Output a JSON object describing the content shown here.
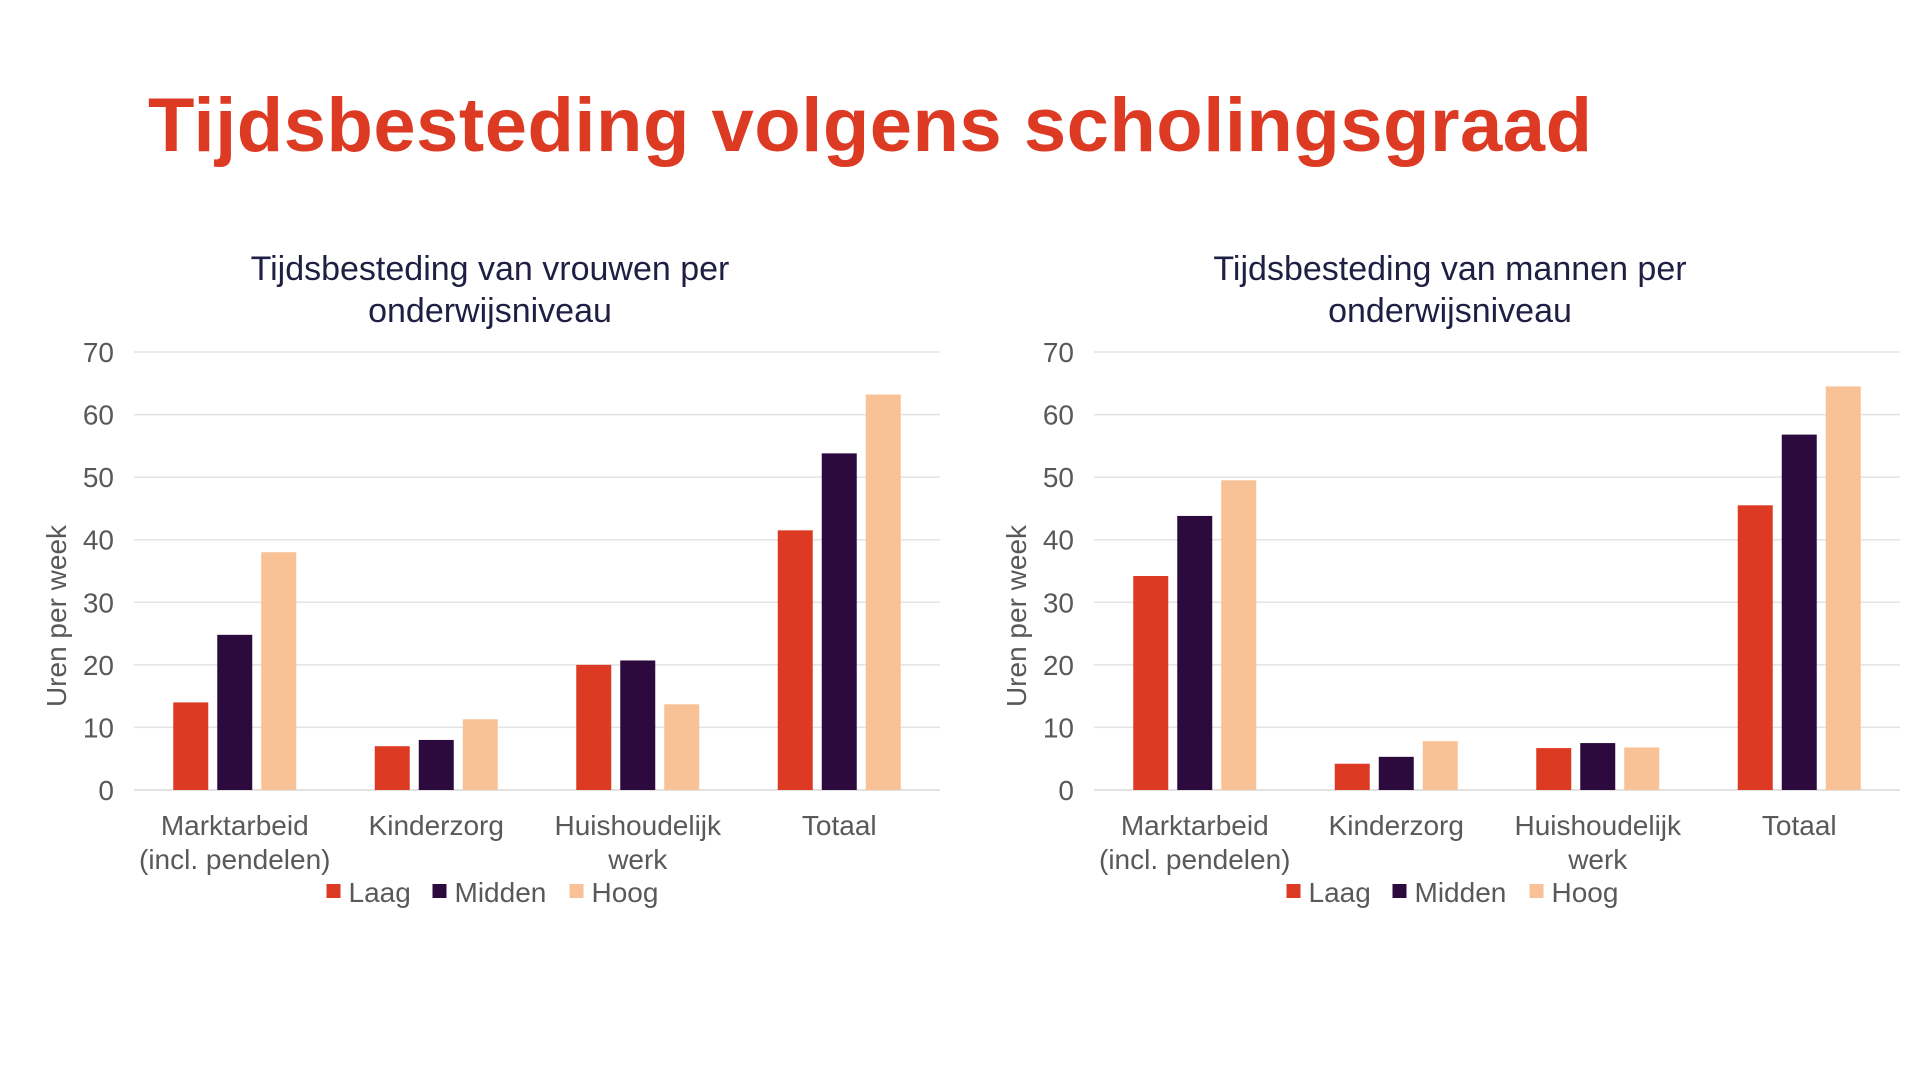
{
  "page": {
    "title": "Tijdsbesteding volgens scholingsgraad"
  },
  "chart_data": [
    {
      "type": "bar",
      "title": [
        "Tijdsbesteding van vrouwen per",
        "onderwijsniveau"
      ],
      "ylabel": "Uren per week",
      "ylim": [
        0,
        70
      ],
      "yticks": [
        "0",
        "10",
        "20",
        "30",
        "40",
        "50",
        "60",
        "70"
      ],
      "categories": [
        [
          "Marktarbeid",
          "(incl. pendelen)"
        ],
        [
          "Kinderzorg"
        ],
        [
          "Huishoudelijk",
          "werk"
        ],
        [
          "Totaal"
        ]
      ],
      "series": [
        {
          "name": "Laag",
          "color": "#dd3a23",
          "values": [
            14,
            7,
            20,
            41.5
          ]
        },
        {
          "name": "Midden",
          "color": "#2d0a3e",
          "values": [
            24.8,
            8,
            20.7,
            53.8
          ]
        },
        {
          "name": "Hoog",
          "color": "#f8c196",
          "values": [
            38,
            11.3,
            13.7,
            63.2
          ]
        }
      ],
      "grid": true,
      "legend": "bottom"
    },
    {
      "type": "bar",
      "title": [
        "Tijdsbesteding van mannen per",
        "onderwijsniveau"
      ],
      "ylabel": "Uren per week",
      "ylim": [
        0,
        70
      ],
      "yticks": [
        "0",
        "10",
        "20",
        "30",
        "40",
        "50",
        "60",
        "70"
      ],
      "categories": [
        [
          "Marktarbeid",
          "(incl. pendelen)"
        ],
        [
          "Kinderzorg"
        ],
        [
          "Huishoudelijk",
          "werk"
        ],
        [
          "Totaal"
        ]
      ],
      "series": [
        {
          "name": "Laag",
          "color": "#dd3a23",
          "values": [
            34.2,
            4.2,
            6.7,
            45.5
          ]
        },
        {
          "name": "Midden",
          "color": "#2d0a3e",
          "values": [
            43.8,
            5.3,
            7.5,
            56.8
          ]
        },
        {
          "name": "Hoog",
          "color": "#f8c196",
          "values": [
            49.5,
            7.8,
            6.8,
            64.5
          ]
        }
      ],
      "grid": true,
      "legend": "bottom"
    }
  ]
}
